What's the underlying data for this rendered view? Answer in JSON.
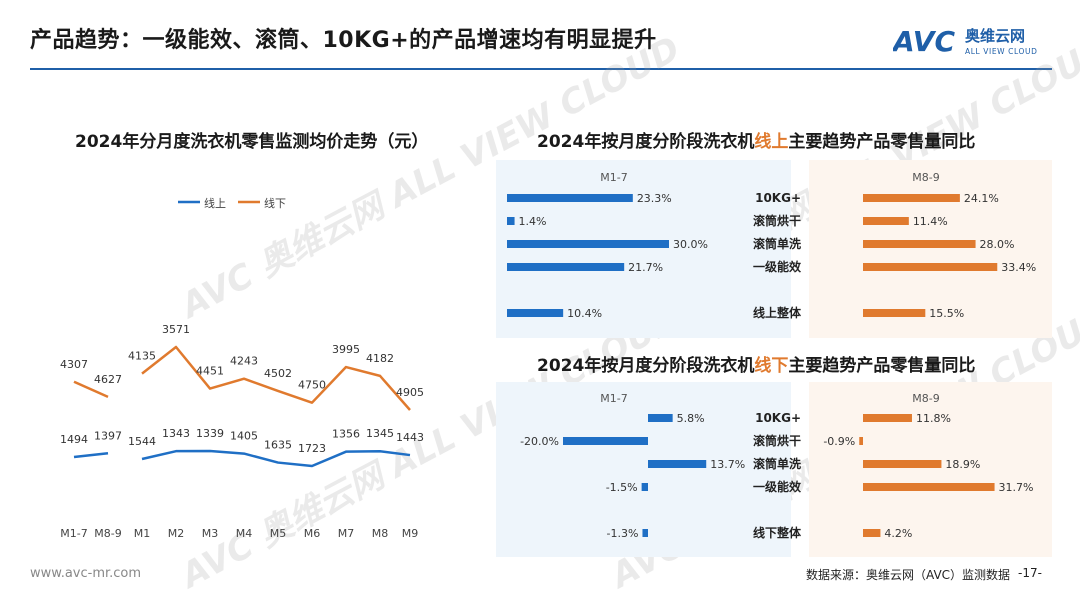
{
  "page": {
    "title": "产品趋势：一级能效、滚筒、10KG+的产品增速均有明显提升",
    "logo_text": "AVC",
    "logo_cn": "奥维云网",
    "logo_en": "ALL VIEW CLOUD",
    "footer_url": "www.avc-mr.com",
    "footer_source": "数据来源：奥维云网（AVC）监测数据",
    "page_number": "-17-",
    "watermark_text": "AVC 奥维云网 ALL VIEW CLOUD"
  },
  "colors": {
    "blue": "#1f6fc5",
    "orange": "#e07a2e",
    "title_rule": "#1f5fa8"
  },
  "chart_data": [
    {
      "type": "line",
      "title": "2024年分月度洗衣机零售监测均价走势（元）",
      "categories": [
        "M1-7",
        "M8-9",
        "M1",
        "M2",
        "M3",
        "M4",
        "M5",
        "M6",
        "M7",
        "M8",
        "M9"
      ],
      "legend_position": "top-center",
      "grid": false,
      "series": [
        {
          "name": "线上",
          "color": "#1f6fc5",
          "values": [
            1494,
            1397,
            1544,
            1343,
            1339,
            1405,
            1635,
            1723,
            1356,
            1345,
            1443
          ]
        },
        {
          "name": "线下",
          "color": "#e07a2e",
          "values": [
            4307,
            4627,
            4135,
            3571,
            4451,
            4243,
            4502,
            4750,
            3995,
            4182,
            4905
          ]
        }
      ],
      "note": "lines break between M8-9 and M1"
    },
    {
      "type": "bar",
      "title_parts": [
        "2024年按月度分阶段洗衣机",
        "线上",
        "主要趋势产品零售量同比"
      ],
      "categories": [
        "10KG+",
        "滚筒烘干",
        "滚筒单洗",
        "一级能效",
        "线上整体"
      ],
      "unit": "%",
      "series": [
        {
          "name": "M1-7",
          "color": "#1f6fc5",
          "values": [
            23.3,
            1.4,
            30.0,
            21.7,
            10.4
          ],
          "labels": [
            "23.3%",
            "1.4%",
            "30.0%",
            "21.7%",
            "10.4%"
          ]
        },
        {
          "name": "M8-9",
          "color": "#e07a2e",
          "values": [
            24.1,
            11.4,
            28.0,
            33.4,
            15.5
          ],
          "labels": [
            "24.1%",
            "11.4%",
            "28.0%",
            "33.4%",
            "15.5%"
          ]
        }
      ]
    },
    {
      "type": "bar",
      "title_parts": [
        "2024年按月度分阶段洗衣机",
        "线下",
        "主要趋势产品零售量同比"
      ],
      "categories": [
        "10KG+",
        "滚筒烘干",
        "滚筒单洗",
        "一级能效",
        "线下整体"
      ],
      "unit": "%",
      "series": [
        {
          "name": "M1-7",
          "color": "#1f6fc5",
          "values": [
            5.8,
            -20.0,
            13.7,
            -1.5,
            -1.3
          ],
          "labels": [
            "5.8%",
            "-20.0%",
            "13.7%",
            "-1.5%",
            "-1.3%"
          ]
        },
        {
          "name": "M8-9",
          "color": "#e07a2e",
          "values": [
            11.8,
            -0.9,
            18.9,
            31.7,
            4.2
          ],
          "labels": [
            "11.8%",
            "-0.9%",
            "18.9%",
            "31.7%",
            "4.2%"
          ]
        }
      ]
    }
  ]
}
